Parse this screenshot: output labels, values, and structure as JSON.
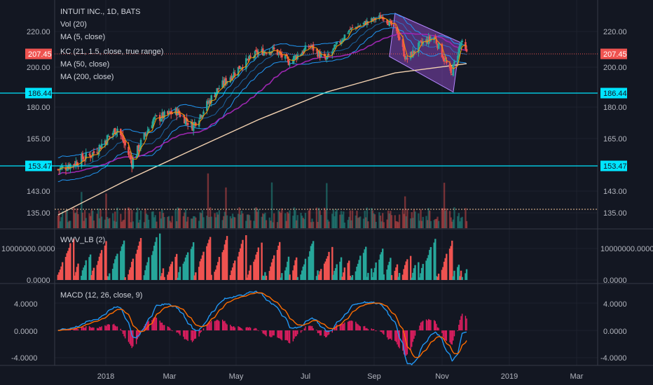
{
  "header": {
    "title": "INTUIT INC., 1D, BATS",
    "indicators": [
      "Vol (20)",
      "MA (5, close)",
      "KC (21, 1.5, close, true range)",
      "MA (50, close)",
      "MA (200, close)"
    ]
  },
  "panes": {
    "wwv_label": "WWV_LB (2)",
    "macd_label": "MACD (12, 26, close, 9)"
  },
  "price_axis": {
    "left_ticks": [
      "220.00",
      "200.00",
      "180.00",
      "165.00",
      "143.00",
      "135.00"
    ],
    "right_ticks": [
      "220.00",
      "200.00",
      "180.00",
      "165.00",
      "143.00",
      "135.00"
    ],
    "last_price": "207.45",
    "hline_1": "186.44",
    "hline_2": "153.47"
  },
  "wwv_axis": {
    "ticks": [
      "10000000.0000",
      "0.0000"
    ]
  },
  "macd_axis": {
    "ticks": [
      "4.0000",
      "0.0000",
      "-4.0000"
    ]
  },
  "time_axis": {
    "labels": [
      "2018",
      "Mar",
      "May",
      "Jul",
      "Sep",
      "Nov",
      "2019",
      "Mar"
    ]
  },
  "colors": {
    "background": "#131722",
    "up": "#26a69a",
    "down": "#ef5350",
    "hline": "#00e5ff",
    "ma200": "#f3d2b1",
    "ma50": "#9c27b0",
    "kc": "#2196f3",
    "ma5": "#ff9800",
    "channel": "#9c4fd6",
    "macd": "#2196f3",
    "signal": "#ff6d00",
    "hist": "#e91e63"
  },
  "chart_data": {
    "type": "candlestick",
    "symbol": "INTUIT INC.",
    "interval": "1D",
    "exchange": "BATS",
    "x_range": [
      "2017-12-01",
      "2019-03-31"
    ],
    "price_range": [
      128,
      236
    ],
    "last_close": 207.45,
    "horizontal_levels": [
      186.44,
      153.47
    ],
    "price_path": [
      {
        "date": "2017-12-04",
        "price": 152
      },
      {
        "date": "2017-12-20",
        "price": 155
      },
      {
        "date": "2018-01-05",
        "price": 159
      },
      {
        "date": "2018-01-26",
        "price": 170
      },
      {
        "date": "2018-02-08",
        "price": 155
      },
      {
        "date": "2018-02-27",
        "price": 174
      },
      {
        "date": "2018-03-20",
        "price": 178
      },
      {
        "date": "2018-04-03",
        "price": 171
      },
      {
        "date": "2018-04-25",
        "price": 188
      },
      {
        "date": "2018-05-15",
        "price": 200
      },
      {
        "date": "2018-05-31",
        "price": 208
      },
      {
        "date": "2018-06-14",
        "price": 210
      },
      {
        "date": "2018-06-28",
        "price": 203
      },
      {
        "date": "2018-07-17",
        "price": 212
      },
      {
        "date": "2018-07-31",
        "price": 204
      },
      {
        "date": "2018-08-21",
        "price": 221
      },
      {
        "date": "2018-09-04",
        "price": 226
      },
      {
        "date": "2018-09-20",
        "price": 231
      },
      {
        "date": "2018-10-03",
        "price": 220
      },
      {
        "date": "2018-10-11",
        "price": 204
      },
      {
        "date": "2018-10-24",
        "price": 213
      },
      {
        "date": "2018-11-05",
        "price": 217
      },
      {
        "date": "2018-11-20",
        "price": 196
      },
      {
        "date": "2018-11-29",
        "price": 214
      },
      {
        "date": "2018-12-04",
        "price": 207.45
      }
    ],
    "ma200": [
      {
        "date": "2017-12-04",
        "value": 134
      },
      {
        "date": "2018-02-01",
        "value": 147
      },
      {
        "date": "2018-04-02",
        "value": 160
      },
      {
        "date": "2018-06-01",
        "value": 174
      },
      {
        "date": "2018-08-01",
        "value": 187
      },
      {
        "date": "2018-10-01",
        "value": 197
      },
      {
        "date": "2018-12-04",
        "value": 202
      }
    ],
    "macd_range": [
      -5.5,
      6.5
    ],
    "wwv_ticks": [
      "10000000.0000",
      "0.0000"
    ]
  }
}
